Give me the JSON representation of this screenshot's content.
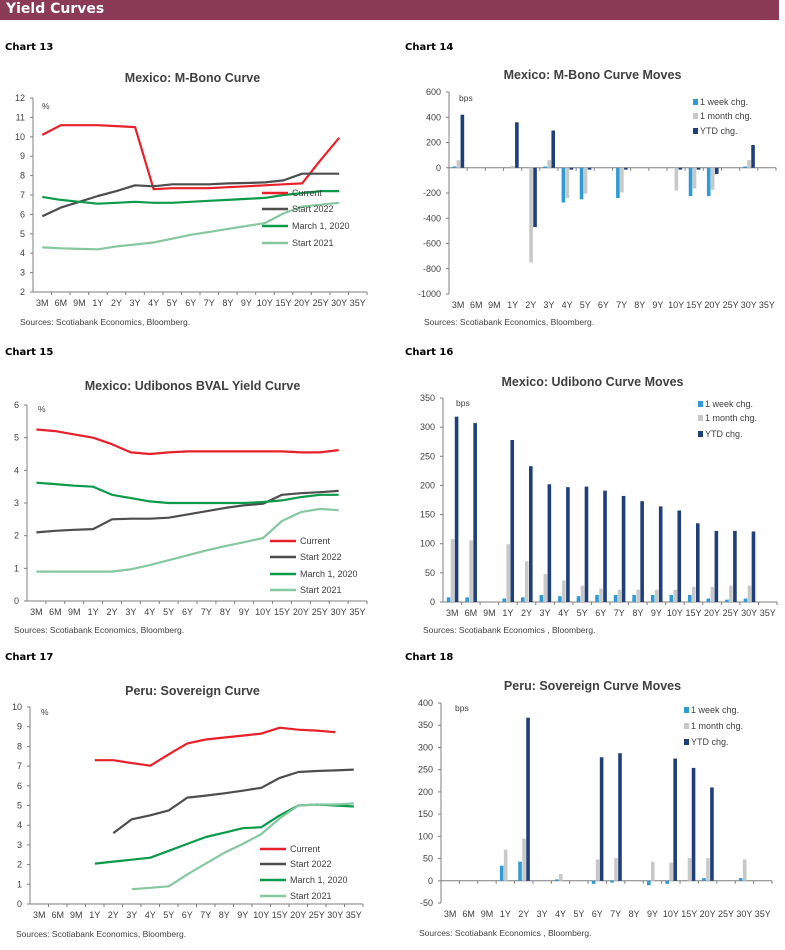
{
  "header": {
    "title": "Yield Curves",
    "color": "#8c3b57"
  },
  "colors": {
    "Current": "#e8202a",
    "Start 2022": "#4d4d4d",
    "March 1, 2020": "#0a9a4a",
    "Start 2021": "#86c79f",
    "1 week chg.": "#2e9bd6",
    "1 month chg.": "#c8c8c8",
    "YTD chg.": "#1f3f7a"
  },
  "panels": [
    {
      "label": "Chart 13",
      "sources": "Sources: Scotiabank Economics, Bloomberg."
    },
    {
      "label": "Chart 14",
      "sources": "Sources: Scotiabank Economics, Bloomberg."
    },
    {
      "label": "Chart 15",
      "sources": "Sources: Scotiabank Economics, Bloomberg."
    },
    {
      "label": "Chart 16",
      "sources": "Sources: Scotiabank Economics , Bloomberg."
    },
    {
      "label": "Chart 17",
      "sources": "Sources: Scotiabank Economics, Bloomberg."
    },
    {
      "label": "Chart 18",
      "sources": "Sources: Scotiabank Economics , Bloomberg."
    }
  ],
  "chart_data": [
    {
      "type": "line",
      "title": "Mexico: M-Bono Curve",
      "unit": "%",
      "categories": [
        "3M",
        "6M",
        "9M",
        "1Y",
        "2Y",
        "3Y",
        "4Y",
        "5Y",
        "6Y",
        "7Y",
        "8Y",
        "9Y",
        "10Y",
        "15Y",
        "20Y",
        "25Y",
        "30Y",
        "35Y"
      ],
      "ylim": [
        2,
        12
      ],
      "yticks": [
        2,
        3,
        4,
        5,
        6,
        7,
        8,
        9,
        10,
        11,
        12
      ],
      "grid": false,
      "legend": "bottom-right",
      "series": [
        {
          "name": "Current",
          "values": [
            10.1,
            10.6,
            10.6,
            10.6,
            10.55,
            10.5,
            7.3,
            7.35,
            7.35,
            7.35,
            7.4,
            7.45,
            7.5,
            7.55,
            7.6,
            8.8,
            9.95,
            null
          ]
        },
        {
          "name": "Start 2022",
          "values": [
            5.9,
            6.35,
            6.65,
            6.95,
            7.2,
            7.5,
            7.45,
            7.55,
            7.55,
            7.55,
            7.6,
            7.62,
            7.65,
            7.75,
            8.1,
            8.1,
            8.1,
            null
          ]
        },
        {
          "name": "March 1, 2020",
          "values": [
            6.9,
            6.75,
            6.65,
            6.55,
            6.6,
            6.65,
            6.6,
            6.6,
            6.65,
            6.7,
            6.75,
            6.8,
            6.85,
            7.0,
            7.1,
            7.2,
            7.2,
            null
          ]
        },
        {
          "name": "Start 2021",
          "values": [
            4.3,
            4.25,
            4.22,
            4.2,
            4.35,
            4.45,
            4.55,
            4.75,
            4.95,
            5.1,
            5.25,
            5.4,
            5.55,
            6.05,
            6.4,
            6.5,
            6.6,
            null
          ]
        }
      ]
    },
    {
      "type": "bar",
      "title": "Mexico: M-Bono Curve Moves",
      "unit": "bps",
      "categories": [
        "3M",
        "6M",
        "9M",
        "1Y",
        "2Y",
        "3Y",
        "4Y",
        "5Y",
        "6Y",
        "7Y",
        "8Y",
        "9Y",
        "10Y",
        "15Y",
        "20Y",
        "25Y",
        "30Y",
        "35Y"
      ],
      "ylim": [
        -1000,
        600
      ],
      "yticks": [
        -1000,
        -800,
        -600,
        -400,
        -200,
        0,
        200,
        400,
        600
      ],
      "grid": false,
      "legend": "top-right",
      "series": [
        {
          "name": "1 week chg.",
          "values": [
            10,
            null,
            null,
            0,
            0,
            10,
            -275,
            -250,
            null,
            -240,
            null,
            null,
            0,
            -225,
            -225,
            null,
            10,
            null
          ]
        },
        {
          "name": "1 month chg.",
          "values": [
            60,
            null,
            null,
            15,
            -750,
            60,
            -240,
            -205,
            null,
            -195,
            null,
            null,
            -180,
            -165,
            -175,
            null,
            60,
            null
          ]
        },
        {
          "name": "YTD chg.",
          "values": [
            420,
            null,
            null,
            360,
            -470,
            295,
            -15,
            -15,
            null,
            -15,
            null,
            null,
            -15,
            -15,
            -50,
            null,
            180,
            null
          ]
        }
      ]
    },
    {
      "type": "line",
      "title": "Mexico: Udibonos  BVAL Yield Curve",
      "unit": "%",
      "categories": [
        "3M",
        "6M",
        "9M",
        "1Y",
        "2Y",
        "3Y",
        "4Y",
        "5Y",
        "6Y",
        "7Y",
        "8Y",
        "9Y",
        "10Y",
        "15Y",
        "20Y",
        "25Y",
        "30Y",
        "35Y"
      ],
      "ylim": [
        0,
        6
      ],
      "yticks": [
        0,
        1,
        2,
        3,
        4,
        5,
        6
      ],
      "grid": false,
      "legend": "bottom-right",
      "series": [
        {
          "name": "Current",
          "values": [
            5.25,
            5.2,
            5.1,
            5.0,
            4.8,
            4.55,
            4.5,
            4.55,
            4.58,
            4.58,
            4.58,
            4.58,
            4.58,
            4.58,
            4.55,
            4.55,
            4.62,
            null
          ]
        },
        {
          "name": "Start 2022",
          "values": [
            2.1,
            2.15,
            2.18,
            2.2,
            2.5,
            2.52,
            2.52,
            2.55,
            2.65,
            2.75,
            2.85,
            2.93,
            2.98,
            3.25,
            3.3,
            3.33,
            3.37,
            null
          ]
        },
        {
          "name": "March 1, 2020",
          "values": [
            3.62,
            3.58,
            3.53,
            3.5,
            3.25,
            3.15,
            3.05,
            3.0,
            3.0,
            3.0,
            3.0,
            3.0,
            3.03,
            3.08,
            3.18,
            3.25,
            3.25,
            null
          ]
        },
        {
          "name": "Start 2021",
          "values": [
            0.9,
            0.9,
            0.9,
            0.9,
            0.9,
            0.97,
            1.1,
            1.25,
            1.4,
            1.55,
            1.68,
            1.8,
            1.93,
            2.45,
            2.72,
            2.82,
            2.78,
            null
          ]
        }
      ]
    },
    {
      "type": "bar",
      "title": "Mexico: Udibono Curve Moves",
      "unit": "bps",
      "categories": [
        "3M",
        "6M",
        "9M",
        "1Y",
        "2Y",
        "3Y",
        "4Y",
        "5Y",
        "6Y",
        "7Y",
        "8Y",
        "9Y",
        "10Y",
        "15Y",
        "20Y",
        "25Y",
        "30Y",
        "35Y"
      ],
      "ylim": [
        0,
        350
      ],
      "yticks": [
        0,
        50,
        100,
        150,
        200,
        250,
        300,
        350
      ],
      "grid": false,
      "legend": "top-right",
      "series": [
        {
          "name": "1 week chg.",
          "values": [
            8,
            8,
            null,
            6,
            8,
            12,
            10,
            10,
            12,
            12,
            12,
            12,
            12,
            12,
            6,
            4,
            6,
            null
          ]
        },
        {
          "name": "1 month chg.",
          "values": [
            108,
            106,
            null,
            99,
            70,
            48,
            37,
            28,
            23,
            21,
            21,
            21,
            21,
            26,
            26,
            28,
            28,
            null
          ]
        },
        {
          "name": "YTD chg.",
          "values": [
            318,
            307,
            null,
            278,
            233,
            202,
            197,
            198,
            191,
            182,
            173,
            164,
            157,
            135,
            122,
            122,
            121,
            null
          ]
        }
      ]
    },
    {
      "type": "line",
      "title": "Peru: Sovereign Curve",
      "unit": "%",
      "categories": [
        "3M",
        "6M",
        "9M",
        "1Y",
        "2Y",
        "3Y",
        "4Y",
        "5Y",
        "6Y",
        "7Y",
        "8Y",
        "9Y",
        "10Y",
        "15Y",
        "20Y",
        "25Y",
        "30Y",
        "35Y"
      ],
      "ylim": [
        0,
        10
      ],
      "yticks": [
        0,
        1,
        2,
        3,
        4,
        5,
        6,
        7,
        8,
        9,
        10
      ],
      "grid": false,
      "legend": "bottom-right",
      "series": [
        {
          "name": "Current",
          "values": [
            null,
            null,
            null,
            7.3,
            7.3,
            7.15,
            7.02,
            7.6,
            8.15,
            8.35,
            8.45,
            8.55,
            8.65,
            8.95,
            8.85,
            8.8,
            8.72,
            null
          ]
        },
        {
          "name": "Start 2022",
          "values": [
            null,
            null,
            null,
            null,
            3.6,
            4.3,
            4.5,
            4.75,
            5.4,
            5.5,
            5.62,
            5.75,
            5.9,
            6.4,
            6.7,
            6.75,
            6.78,
            6.82
          ]
        },
        {
          "name": "March 1, 2020",
          "values": [
            null,
            null,
            null,
            2.05,
            2.15,
            2.25,
            2.35,
            2.7,
            3.05,
            3.4,
            3.62,
            3.85,
            3.9,
            4.5,
            5.0,
            5.05,
            5.0,
            4.95
          ]
        },
        {
          "name": "Start 2021",
          "values": [
            null,
            null,
            null,
            null,
            null,
            0.75,
            0.82,
            0.9,
            1.5,
            2.05,
            2.6,
            3.05,
            3.55,
            4.35,
            5.0,
            5.05,
            5.05,
            5.1
          ]
        }
      ]
    },
    {
      "type": "bar",
      "title": "Peru: Sovereign Curve Moves",
      "unit": "bps",
      "categories": [
        "3M",
        "6M",
        "9M",
        "1Y",
        "2Y",
        "3Y",
        "4Y",
        "5Y",
        "6Y",
        "7Y",
        "8Y",
        "9Y",
        "10Y",
        "15Y",
        "20Y",
        "25Y",
        "30Y",
        "35Y"
      ],
      "ylim": [
        -50,
        400
      ],
      "yticks": [
        -50,
        0,
        50,
        100,
        150,
        200,
        250,
        300,
        350,
        400
      ],
      "grid": false,
      "legend": "top-right",
      "series": [
        {
          "name": "1 week chg.",
          "values": [
            null,
            null,
            null,
            34,
            43,
            null,
            3,
            null,
            -7,
            -4,
            null,
            -10,
            -7,
            0,
            6,
            null,
            6,
            null
          ]
        },
        {
          "name": "1 month chg.",
          "values": [
            null,
            null,
            null,
            70,
            95,
            null,
            15,
            null,
            48,
            51,
            null,
            43,
            41,
            51,
            51,
            null,
            48,
            null
          ]
        },
        {
          "name": "YTD chg.",
          "values": [
            null,
            null,
            null,
            0,
            367,
            null,
            0,
            null,
            278,
            287,
            null,
            0,
            275,
            254,
            210,
            null,
            0,
            null
          ]
        }
      ]
    }
  ]
}
